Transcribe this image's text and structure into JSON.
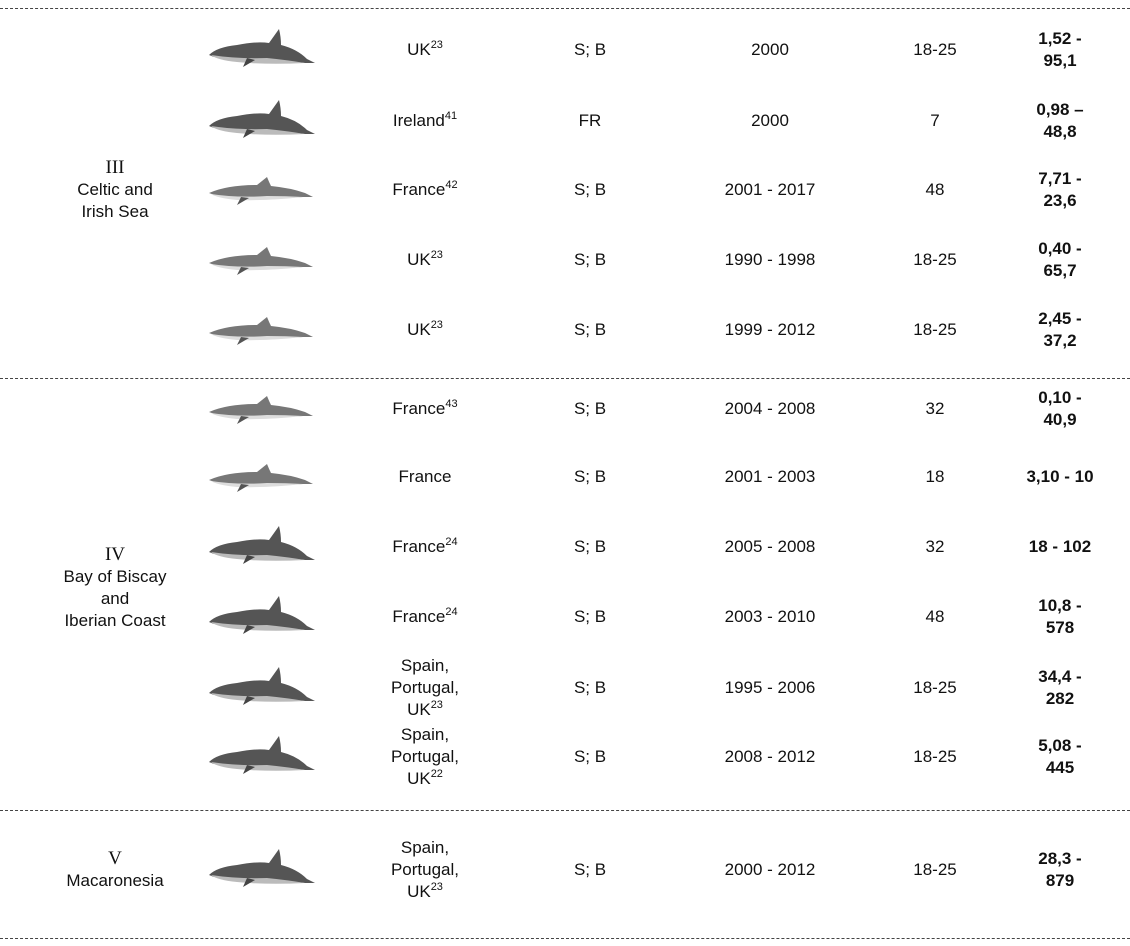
{
  "groups": [
    {
      "roman": "III",
      "name": [
        "Celtic and",
        "Irish Sea"
      ],
      "rows": [
        {
          "country": "UK",
          "sup": "23",
          "method": "S; B",
          "years": "2000",
          "n": "18-25",
          "range": "1,52 - 95,1"
        },
        {
          "country": "Ireland",
          "sup": "41",
          "method": "FR",
          "years": "2000",
          "n": "7",
          "range": "0,98 – 48,8"
        },
        {
          "country": "France",
          "sup": "42",
          "method": "S; B",
          "years": "2001 - 2017",
          "n": "48",
          "range": "7,71 - 23,6"
        },
        {
          "country": "UK",
          "sup": "23",
          "method": "S; B",
          "years": "1990 - 1998",
          "n": "18-25",
          "range": "0,40 - 65,7"
        },
        {
          "country": "UK",
          "sup": "23",
          "method": "S; B",
          "years": "1999 - 2012",
          "n": "18-25",
          "range": "2,45 - 37,2"
        }
      ]
    },
    {
      "roman": "IV",
      "name": [
        "Bay of Biscay",
        "and",
        "Iberian Coast"
      ],
      "rows": [
        {
          "country": "France",
          "sup": "43",
          "method": "S; B",
          "years": "2004 - 2008",
          "n": "32",
          "range": "0,10 - 40,9"
        },
        {
          "country": "France",
          "method": "S; B",
          "years": "2001 - 2003",
          "n": "18",
          "range": "3,10 - 10"
        },
        {
          "country": "France",
          "sup": "24",
          "method": "S; B",
          "years": "2005 - 2008",
          "n": "32",
          "range": "18 - 102"
        },
        {
          "country": "France",
          "sup": "24",
          "method": "S; B",
          "years": "2003 - 2010",
          "n": "48",
          "range": "10,8 - 578"
        },
        {
          "country": "Spain, Portugal, UK",
          "sup": "23",
          "method": "S; B",
          "years": "1995 - 2006",
          "n": "18-25",
          "range": "34,4 - 282"
        },
        {
          "country": "Spain, Portugal, UK",
          "sup": "22",
          "method": "S; B",
          "years": "2008 - 2012",
          "n": "18-25",
          "range": "5,08 - 445"
        }
      ]
    },
    {
      "roman": "V",
      "name": [
        "Macaronesia"
      ],
      "rows": [
        {
          "country": "Spain, Portugal, UK",
          "sup": "23",
          "method": "S; B",
          "years": "2000 - 2012",
          "n": "18-25",
          "range": "28,3 - 879"
        }
      ]
    }
  ]
}
